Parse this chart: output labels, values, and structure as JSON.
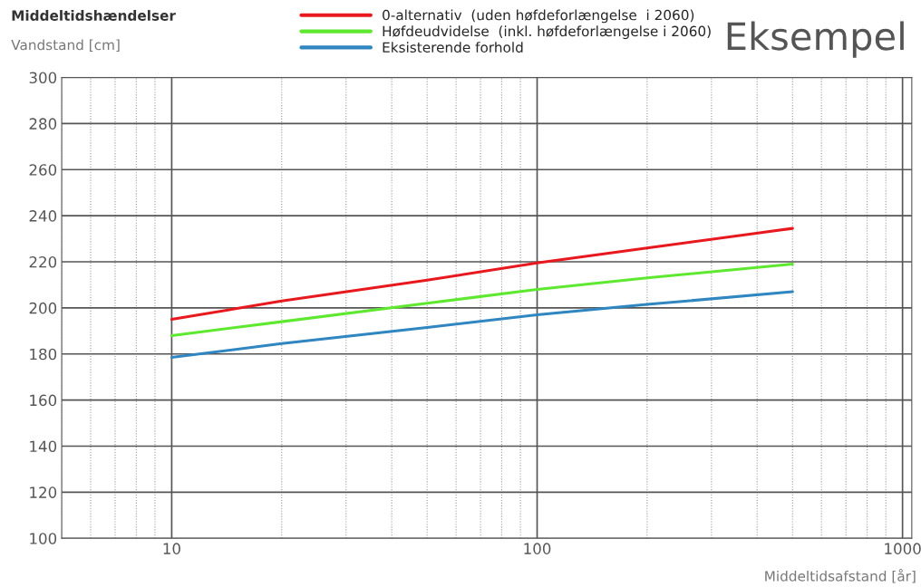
{
  "chart_data": {
    "type": "line",
    "title": "Middeltidshændelser",
    "ylabel": "Vandstand [cm]",
    "xlabel": "Middeltidsafstand [år]",
    "annotations": [
      "Eksempel"
    ],
    "x": [
      10,
      20,
      50,
      100,
      200,
      500
    ],
    "series": [
      {
        "name": "0-alternativ  (uden høfdeforlængelse  i 2060)",
        "color": "#e8191e",
        "values": [
          195,
          203,
          212,
          219.5,
          226,
          234.5
        ]
      },
      {
        "name": "Høfdeudvidelse  (inkl. høfdeforlængelse i 2060)",
        "color": "#5fe830",
        "values": [
          188,
          194,
          202,
          208,
          213,
          219
        ]
      },
      {
        "name": "Eksisterende forhold",
        "color": "#2f86c0",
        "values": [
          178.5,
          184.5,
          191.5,
          197,
          201.5,
          207
        ]
      }
    ],
    "log": "x",
    "xlim": [
      5,
      1060
    ],
    "xticks": [
      10,
      100,
      1000
    ],
    "ylim": [
      100,
      300
    ],
    "yticks": [
      100,
      120,
      140,
      160,
      180,
      200,
      220,
      240,
      260,
      280,
      300
    ],
    "grid": true,
    "legend": "top",
    "marker": "none",
    "line_style": "solid"
  }
}
